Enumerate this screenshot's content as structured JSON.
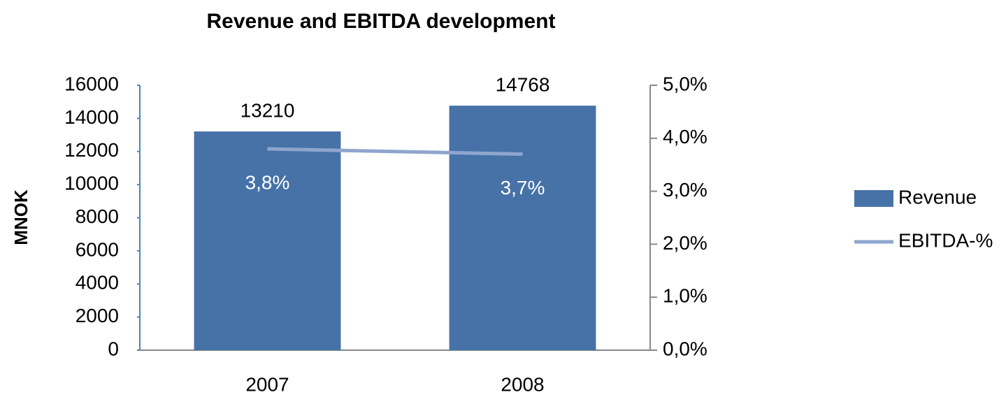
{
  "chart_data": {
    "type": "bar_line",
    "title": "Revenue and EBITDA development",
    "y_label": "MNOK",
    "categories": [
      "2007",
      "2008"
    ],
    "series": [
      {
        "name": "Revenue",
        "type": "bar",
        "color": "#4672a8",
        "values": [
          13210,
          14768
        ]
      },
      {
        "name": "EBITDA-%",
        "type": "line",
        "axis": "y2",
        "color": "#8ea6ce",
        "values": [
          3.8,
          3.7
        ],
        "value_labels": [
          "3,8%",
          "3,7%"
        ]
      }
    ],
    "ylim": [
      0,
      16000
    ],
    "yticks": [
      0,
      2000,
      4000,
      6000,
      8000,
      10000,
      12000,
      14000,
      16000
    ],
    "y2lim": [
      0,
      5
    ],
    "y2ticks": [
      {
        "value": 0,
        "label": "0,0%"
      },
      {
        "value": 1,
        "label": "1,0%"
      },
      {
        "value": 2,
        "label": "2,0%"
      },
      {
        "value": 3,
        "label": "3,0%"
      },
      {
        "value": 4,
        "label": "4,0%"
      },
      {
        "value": 5,
        "label": "5,0%"
      }
    ],
    "legend": "right"
  }
}
